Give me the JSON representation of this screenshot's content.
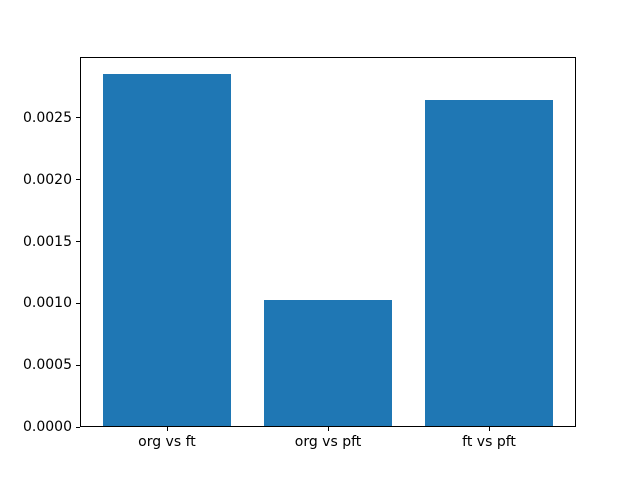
{
  "chart_data": {
    "type": "bar",
    "title": "",
    "xlabel": "",
    "ylabel": "",
    "categories": [
      "org vs ft",
      "org vs pft",
      "ft vs pft"
    ],
    "values": [
      0.00285,
      0.00102,
      0.00264
    ],
    "ylim": [
      0,
      0.002992
    ],
    "xlim": [
      -0.54,
      2.54
    ],
    "yticks": [
      0.0,
      0.0005,
      0.001,
      0.0015,
      0.002,
      0.0025
    ],
    "ytick_labels": [
      "0.0000",
      "0.0005",
      "0.0010",
      "0.0015",
      "0.0020",
      "0.0025"
    ],
    "bar_width": 0.8,
    "bar_color": "#1f77b4",
    "grid": false,
    "legend": false
  },
  "colors": {
    "bar": "#1f77b4",
    "spine": "#000000",
    "background": "#ffffff",
    "text": "#000000"
  }
}
